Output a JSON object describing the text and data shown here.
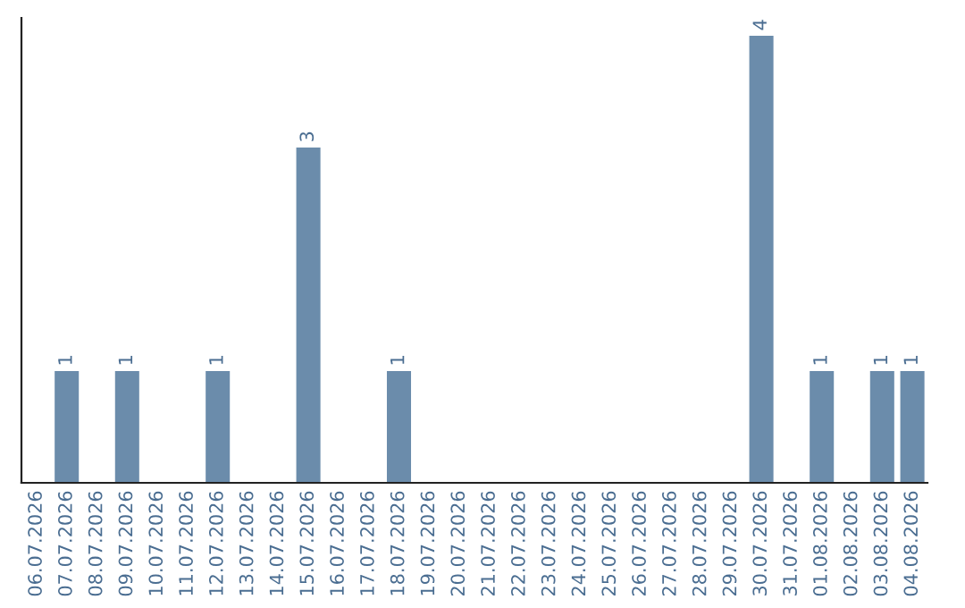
{
  "chart_data": {
    "type": "bar",
    "categories": [
      "06.07.2026",
      "07.07.2026",
      "08.07.2026",
      "09.07.2026",
      "10.07.2026",
      "11.07.2026",
      "12.07.2026",
      "13.07.2026",
      "14.07.2026",
      "15.07.2026",
      "16.07.2026",
      "17.07.2026",
      "18.07.2026",
      "19.07.2026",
      "20.07.2026",
      "21.07.2026",
      "22.07.2026",
      "23.07.2026",
      "24.07.2026",
      "25.07.2026",
      "26.07.2026",
      "27.07.2026",
      "28.07.2026",
      "29.07.2026",
      "30.07.2026",
      "31.07.2026",
      "01.08.2026",
      "02.08.2026",
      "03.08.2026",
      "04.08.2026"
    ],
    "values": [
      0,
      1,
      0,
      1,
      0,
      0,
      1,
      0,
      0,
      3,
      0,
      0,
      1,
      0,
      0,
      0,
      0,
      0,
      0,
      0,
      0,
      0,
      0,
      0,
      4,
      0,
      1,
      0,
      1,
      1
    ],
    "value_labels": [
      null,
      "1",
      null,
      "1",
      null,
      null,
      "1",
      null,
      null,
      "3",
      null,
      null,
      "1",
      null,
      null,
      null,
      null,
      null,
      null,
      null,
      null,
      null,
      null,
      null,
      "4",
      null,
      "1",
      null,
      "1",
      "1"
    ],
    "color": "#6b8cab",
    "ylim": [
      0,
      4.16
    ],
    "tick_labels": "x",
    "grid": false,
    "legend": false
  }
}
